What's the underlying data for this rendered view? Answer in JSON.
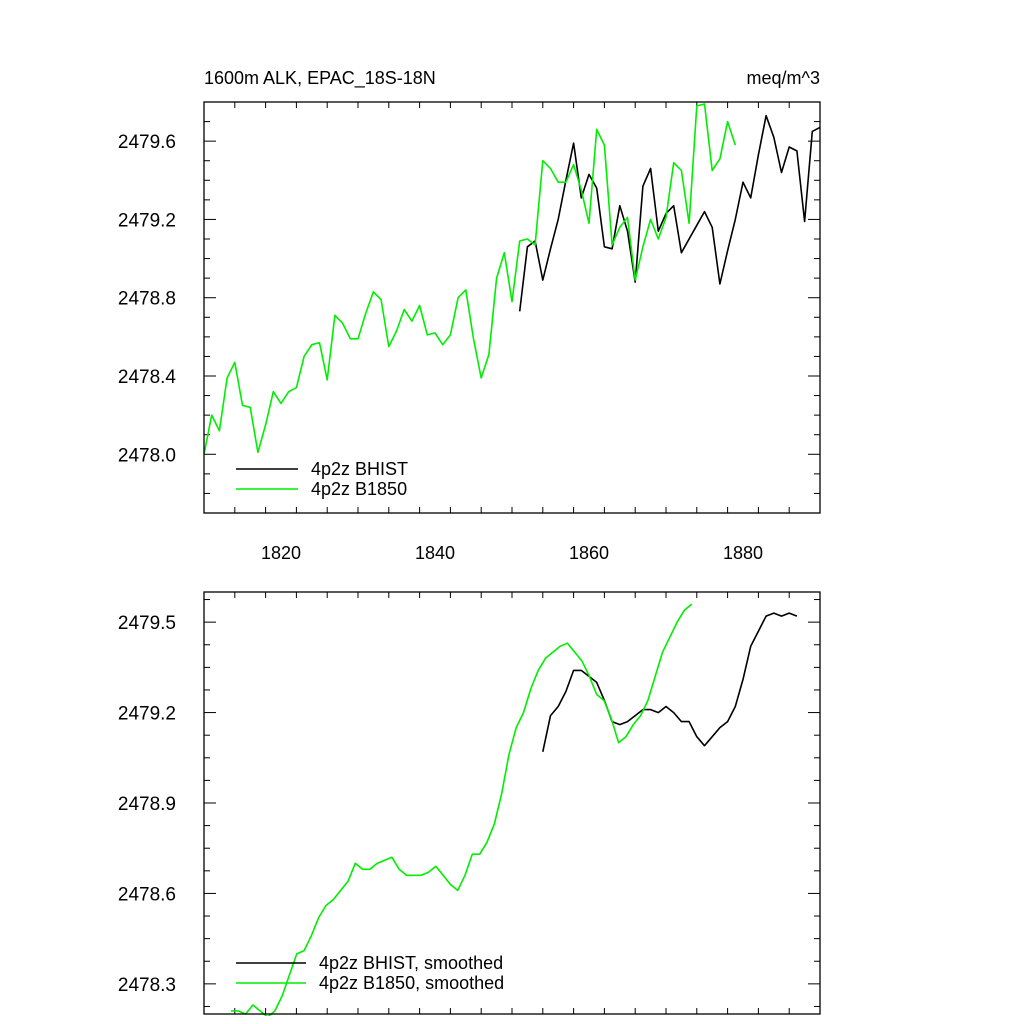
{
  "colors": {
    "bhist": "#000000",
    "b1850": "#00ee00",
    "axis": "#000000"
  },
  "chart_data": [
    {
      "type": "line",
      "title": "1600m ALK, EPAC_18S-18N",
      "units": "meq/m^3",
      "xlim": [
        1810,
        1890
      ],
      "ylim": [
        2477.7,
        2479.8
      ],
      "xticks": [
        1820,
        1840,
        1860,
        1880
      ],
      "xtick_labels": [
        "1820",
        "1840",
        "1860",
        "1880"
      ],
      "yticks": [
        2478.0,
        2478.4,
        2478.8,
        2479.2,
        2479.6
      ],
      "ytick_labels": [
        "2478.0",
        "2478.4",
        "2478.8",
        "2479.2",
        "2479.6"
      ],
      "legend_position": "bottom-left",
      "series": [
        {
          "name": "4p2z BHIST",
          "color": "#000000",
          "x_start": 1851,
          "x_step": 1,
          "values": [
            2478.73,
            2479.06,
            2479.09,
            2478.89,
            2479.05,
            2479.2,
            2479.4,
            2479.59,
            2479.31,
            2479.43,
            2479.36,
            2479.06,
            2479.05,
            2479.27,
            2479.14,
            2478.88,
            2479.37,
            2479.46,
            2479.14,
            2479.23,
            2479.27,
            2479.03,
            2479.1,
            2479.17,
            2479.24,
            2479.16,
            2478.87,
            2479.04,
            2479.2,
            2479.39,
            2479.31,
            2479.53,
            2479.73,
            2479.62,
            2479.44,
            2479.57,
            2479.55,
            2479.19,
            2479.65,
            2479.67
          ]
        },
        {
          "name": "4p2z B1850",
          "color": "#00ee00",
          "x_start": 1810,
          "x_step": 1,
          "values": [
            2478.0,
            2478.2,
            2478.12,
            2478.39,
            2478.47,
            2478.25,
            2478.24,
            2478.01,
            2478.15,
            2478.32,
            2478.26,
            2478.32,
            2478.34,
            2478.5,
            2478.56,
            2478.57,
            2478.38,
            2478.71,
            2478.67,
            2478.59,
            2478.59,
            2478.72,
            2478.83,
            2478.79,
            2478.55,
            2478.63,
            2478.74,
            2478.68,
            2478.76,
            2478.61,
            2478.62,
            2478.56,
            2478.61,
            2478.8,
            2478.84,
            2478.59,
            2478.39,
            2478.51,
            2478.9,
            2479.03,
            2478.78,
            2479.09,
            2479.1,
            2479.07,
            2479.5,
            2479.46,
            2479.39,
            2479.39,
            2479.48,
            2479.35,
            2479.18,
            2479.66,
            2479.58,
            2479.07,
            2479.16,
            2479.21,
            2478.89,
            2479.06,
            2479.2,
            2479.1,
            2479.21,
            2479.49,
            2479.45,
            2479.18,
            2479.78,
            2479.79,
            2479.45,
            2479.51,
            2479.7,
            2479.58
          ]
        }
      ]
    },
    {
      "type": "line",
      "title": "",
      "xlim": [
        1810,
        1890
      ],
      "ylim": [
        2478.2,
        2479.6
      ],
      "xticks": [
        1820,
        1840,
        1860,
        1880
      ],
      "yticks": [
        2478.3,
        2478.6,
        2478.9,
        2479.2,
        2479.5
      ],
      "ytick_labels": [
        "2478.3",
        "2478.6",
        "2478.9",
        "2479.2",
        "2479.5"
      ],
      "legend_position": "bottom-left",
      "series": [
        {
          "name": "4p2z BHIST, smoothed",
          "color": "#000000",
          "x_start": 1854,
          "x_step": 1,
          "values": [
            2479.07,
            2479.19,
            2479.22,
            2479.27,
            2479.34,
            2479.34,
            2479.32,
            2479.3,
            2479.24,
            2479.17,
            2479.16,
            2479.17,
            2479.19,
            2479.21,
            2479.21,
            2479.2,
            2479.22,
            2479.2,
            2479.17,
            2479.17,
            2479.12,
            2479.09,
            2479.12,
            2479.15,
            2479.17,
            2479.22,
            2479.31,
            2479.42,
            2479.47,
            2479.52,
            2479.53,
            2479.52,
            2479.53,
            2479.52
          ]
        },
        {
          "name": "4p2z B1850, smoothed",
          "color": "#00ee00",
          "x_start": 1813.5,
          "x_step": 0.95,
          "values": [
            2478.21,
            2478.21,
            2478.2,
            2478.23,
            2478.21,
            2478.19,
            2478.21,
            2478.26,
            2478.33,
            2478.4,
            2478.41,
            2478.46,
            2478.52,
            2478.56,
            2478.58,
            2478.61,
            2478.64,
            2478.7,
            2478.68,
            2478.68,
            2478.7,
            2478.71,
            2478.72,
            2478.68,
            2478.66,
            2478.66,
            2478.66,
            2478.67,
            2478.69,
            2478.66,
            2478.63,
            2478.61,
            2478.66,
            2478.73,
            2478.73,
            2478.77,
            2478.83,
            2478.93,
            2479.06,
            2479.15,
            2479.2,
            2479.28,
            2479.34,
            2479.38,
            2479.4,
            2479.42,
            2479.43,
            2479.4,
            2479.37,
            2479.32,
            2479.26,
            2479.24,
            2479.18,
            2479.1,
            2479.12,
            2479.16,
            2479.19,
            2479.24,
            2479.32,
            2479.4,
            2479.45,
            2479.5,
            2479.54,
            2479.56
          ]
        }
      ]
    }
  ]
}
